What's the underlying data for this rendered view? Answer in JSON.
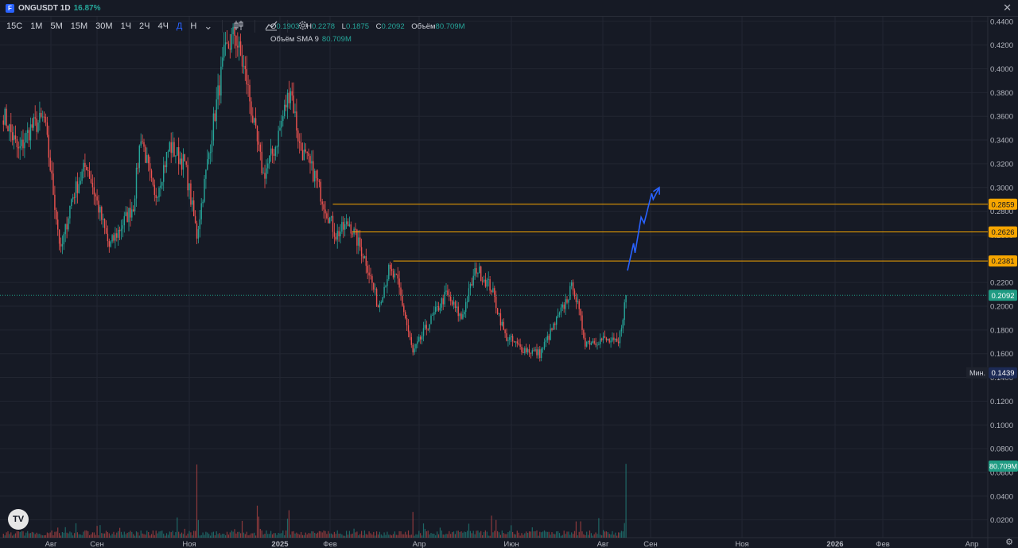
{
  "header": {
    "symbol": "ONGUSDT 1D",
    "change": "16.87%",
    "logo_letter": "F",
    "close_glyph": "✕"
  },
  "toolbar": {
    "timeframes": [
      "15С",
      "1М",
      "5М",
      "15М",
      "30М",
      "1Ч",
      "2Ч",
      "4Ч",
      "Д",
      "Н"
    ],
    "active": "Д",
    "icons": [
      "chevron-down-icon",
      "candles-icon",
      "indicators-icon",
      "settings-icon"
    ]
  },
  "legend": {
    "open_label": "O",
    "open": "0.1903",
    "high_label": "H",
    "high": "0.2278",
    "low_label": "L",
    "low": "0.1875",
    "close_label": "C",
    "close": "0.2092",
    "volume_label": "Объём",
    "volume": "80.709M",
    "sma_label": "Объём SMA 9",
    "sma_value": "80.709M"
  },
  "tv_logo": "TV",
  "chart_data": {
    "type": "candlestick",
    "y_ticks": [
      "0.4400",
      "0.4200",
      "0.4000",
      "0.3800",
      "0.3600",
      "0.3400",
      "0.3200",
      "0.3000",
      "0.2800",
      "0.2600",
      "0.2400",
      "0.2200",
      "0.2000",
      "0.1800",
      "0.1600",
      "0.1400",
      "0.1200",
      "0.1000",
      "0.0800",
      "0.0600",
      "0.0400",
      "0.0200"
    ],
    "ylim": [
      0.0,
      0.45
    ],
    "x_ticks": [
      "Авг",
      "Сен",
      "Ноя",
      "2025",
      "Фев",
      "Апр",
      "Июн",
      "Авг",
      "Сен",
      "Ноя",
      "2026",
      "Фев",
      "Апр"
    ],
    "anchors": [
      {
        "date": "2024-06-28",
        "price": 0.362
      },
      {
        "date": "2024-07-08",
        "price": 0.33
      },
      {
        "date": "2024-07-16",
        "price": 0.35
      },
      {
        "date": "2024-07-25",
        "price": 0.358
      },
      {
        "date": "2024-08-05",
        "price": 0.245
      },
      {
        "date": "2024-08-12",
        "price": 0.29
      },
      {
        "date": "2024-08-22",
        "price": 0.32
      },
      {
        "date": "2024-09-06",
        "price": 0.25
      },
      {
        "date": "2024-09-22",
        "price": 0.285
      },
      {
        "date": "2024-09-27",
        "price": 0.345
      },
      {
        "date": "2024-10-06",
        "price": 0.29
      },
      {
        "date": "2024-10-16",
        "price": 0.335
      },
      {
        "date": "2024-10-26",
        "price": 0.32
      },
      {
        "date": "2024-11-03",
        "price": 0.26
      },
      {
        "date": "2024-11-14",
        "price": 0.355
      },
      {
        "date": "2024-11-21",
        "price": 0.41
      },
      {
        "date": "2024-11-28",
        "price": 0.43
      },
      {
        "date": "2024-12-06",
        "price": 0.39
      },
      {
        "date": "2024-12-11",
        "price": 0.35
      },
      {
        "date": "2024-12-17",
        "price": 0.31
      },
      {
        "date": "2024-12-25",
        "price": 0.335
      },
      {
        "date": "2025-01-04",
        "price": 0.385
      },
      {
        "date": "2025-01-10",
        "price": 0.335
      },
      {
        "date": "2025-01-20",
        "price": 0.31
      },
      {
        "date": "2025-01-28",
        "price": 0.28
      },
      {
        "date": "2025-02-03",
        "price": 0.26
      },
      {
        "date": "2025-02-12",
        "price": 0.27
      },
      {
        "date": "2025-02-23",
        "price": 0.238
      },
      {
        "date": "2025-03-03",
        "price": 0.2
      },
      {
        "date": "2025-03-10",
        "price": 0.23
      },
      {
        "date": "2025-03-16",
        "price": 0.22
      },
      {
        "date": "2025-03-26",
        "price": 0.16
      },
      {
        "date": "2025-04-03",
        "price": 0.18
      },
      {
        "date": "2025-04-17",
        "price": 0.21
      },
      {
        "date": "2025-04-27",
        "price": 0.19
      },
      {
        "date": "2025-05-07",
        "price": 0.232
      },
      {
        "date": "2025-05-17",
        "price": 0.215
      },
      {
        "date": "2025-05-26",
        "price": 0.175
      },
      {
        "date": "2025-06-05",
        "price": 0.165
      },
      {
        "date": "2025-06-18",
        "price": 0.16
      },
      {
        "date": "2025-07-02",
        "price": 0.195
      },
      {
        "date": "2025-07-10",
        "price": 0.218
      },
      {
        "date": "2025-07-18",
        "price": 0.17
      },
      {
        "date": "2025-07-30",
        "price": 0.172
      },
      {
        "date": "2025-08-09",
        "price": 0.168
      },
      {
        "date": "2025-08-14",
        "price": 0.2092
      }
    ],
    "volume_spikes": [
      {
        "date": "2024-11-03",
        "value": 80
      },
      {
        "date": "2024-12-13",
        "value": 35
      },
      {
        "date": "2025-01-03",
        "value": 30
      },
      {
        "date": "2025-03-26",
        "value": 28
      },
      {
        "date": "2025-08-14",
        "value": 80.709
      }
    ],
    "levels": [
      {
        "price": 0.2859,
        "label": "0.2859",
        "from": "2025-02-01"
      },
      {
        "price": 0.2626,
        "label": "0.2626",
        "from": "2025-02-14"
      },
      {
        "price": 0.2381,
        "label": "0.2381",
        "from": "2025-03-13"
      }
    ],
    "last_price": {
      "price": 0.2092,
      "label": "0.2092"
    },
    "min_marker": {
      "price": 0.1439,
      "label": "Мин.",
      "value": "0.1439"
    },
    "volume_marker": {
      "label": "80.709M"
    },
    "projection_arrow": [
      {
        "date": "2025-08-15",
        "price": 0.23
      },
      {
        "date": "2025-08-19",
        "price": 0.253
      },
      {
        "date": "2025-08-20",
        "price": 0.245
      },
      {
        "date": "2025-08-24",
        "price": 0.275
      },
      {
        "date": "2025-08-26",
        "price": 0.27
      },
      {
        "date": "2025-08-31",
        "price": 0.295
      },
      {
        "date": "2025-09-01",
        "price": 0.29
      },
      {
        "date": "2025-09-05",
        "price": 0.3
      }
    ],
    "colors": {
      "up": "#26a69a",
      "down": "#ef5350",
      "level": "#f7a600",
      "arrow": "#2962ff",
      "last": "#1f9b83",
      "grid": "#222632",
      "axis_text": "#b2b5be",
      "background": "#161a25"
    }
  }
}
